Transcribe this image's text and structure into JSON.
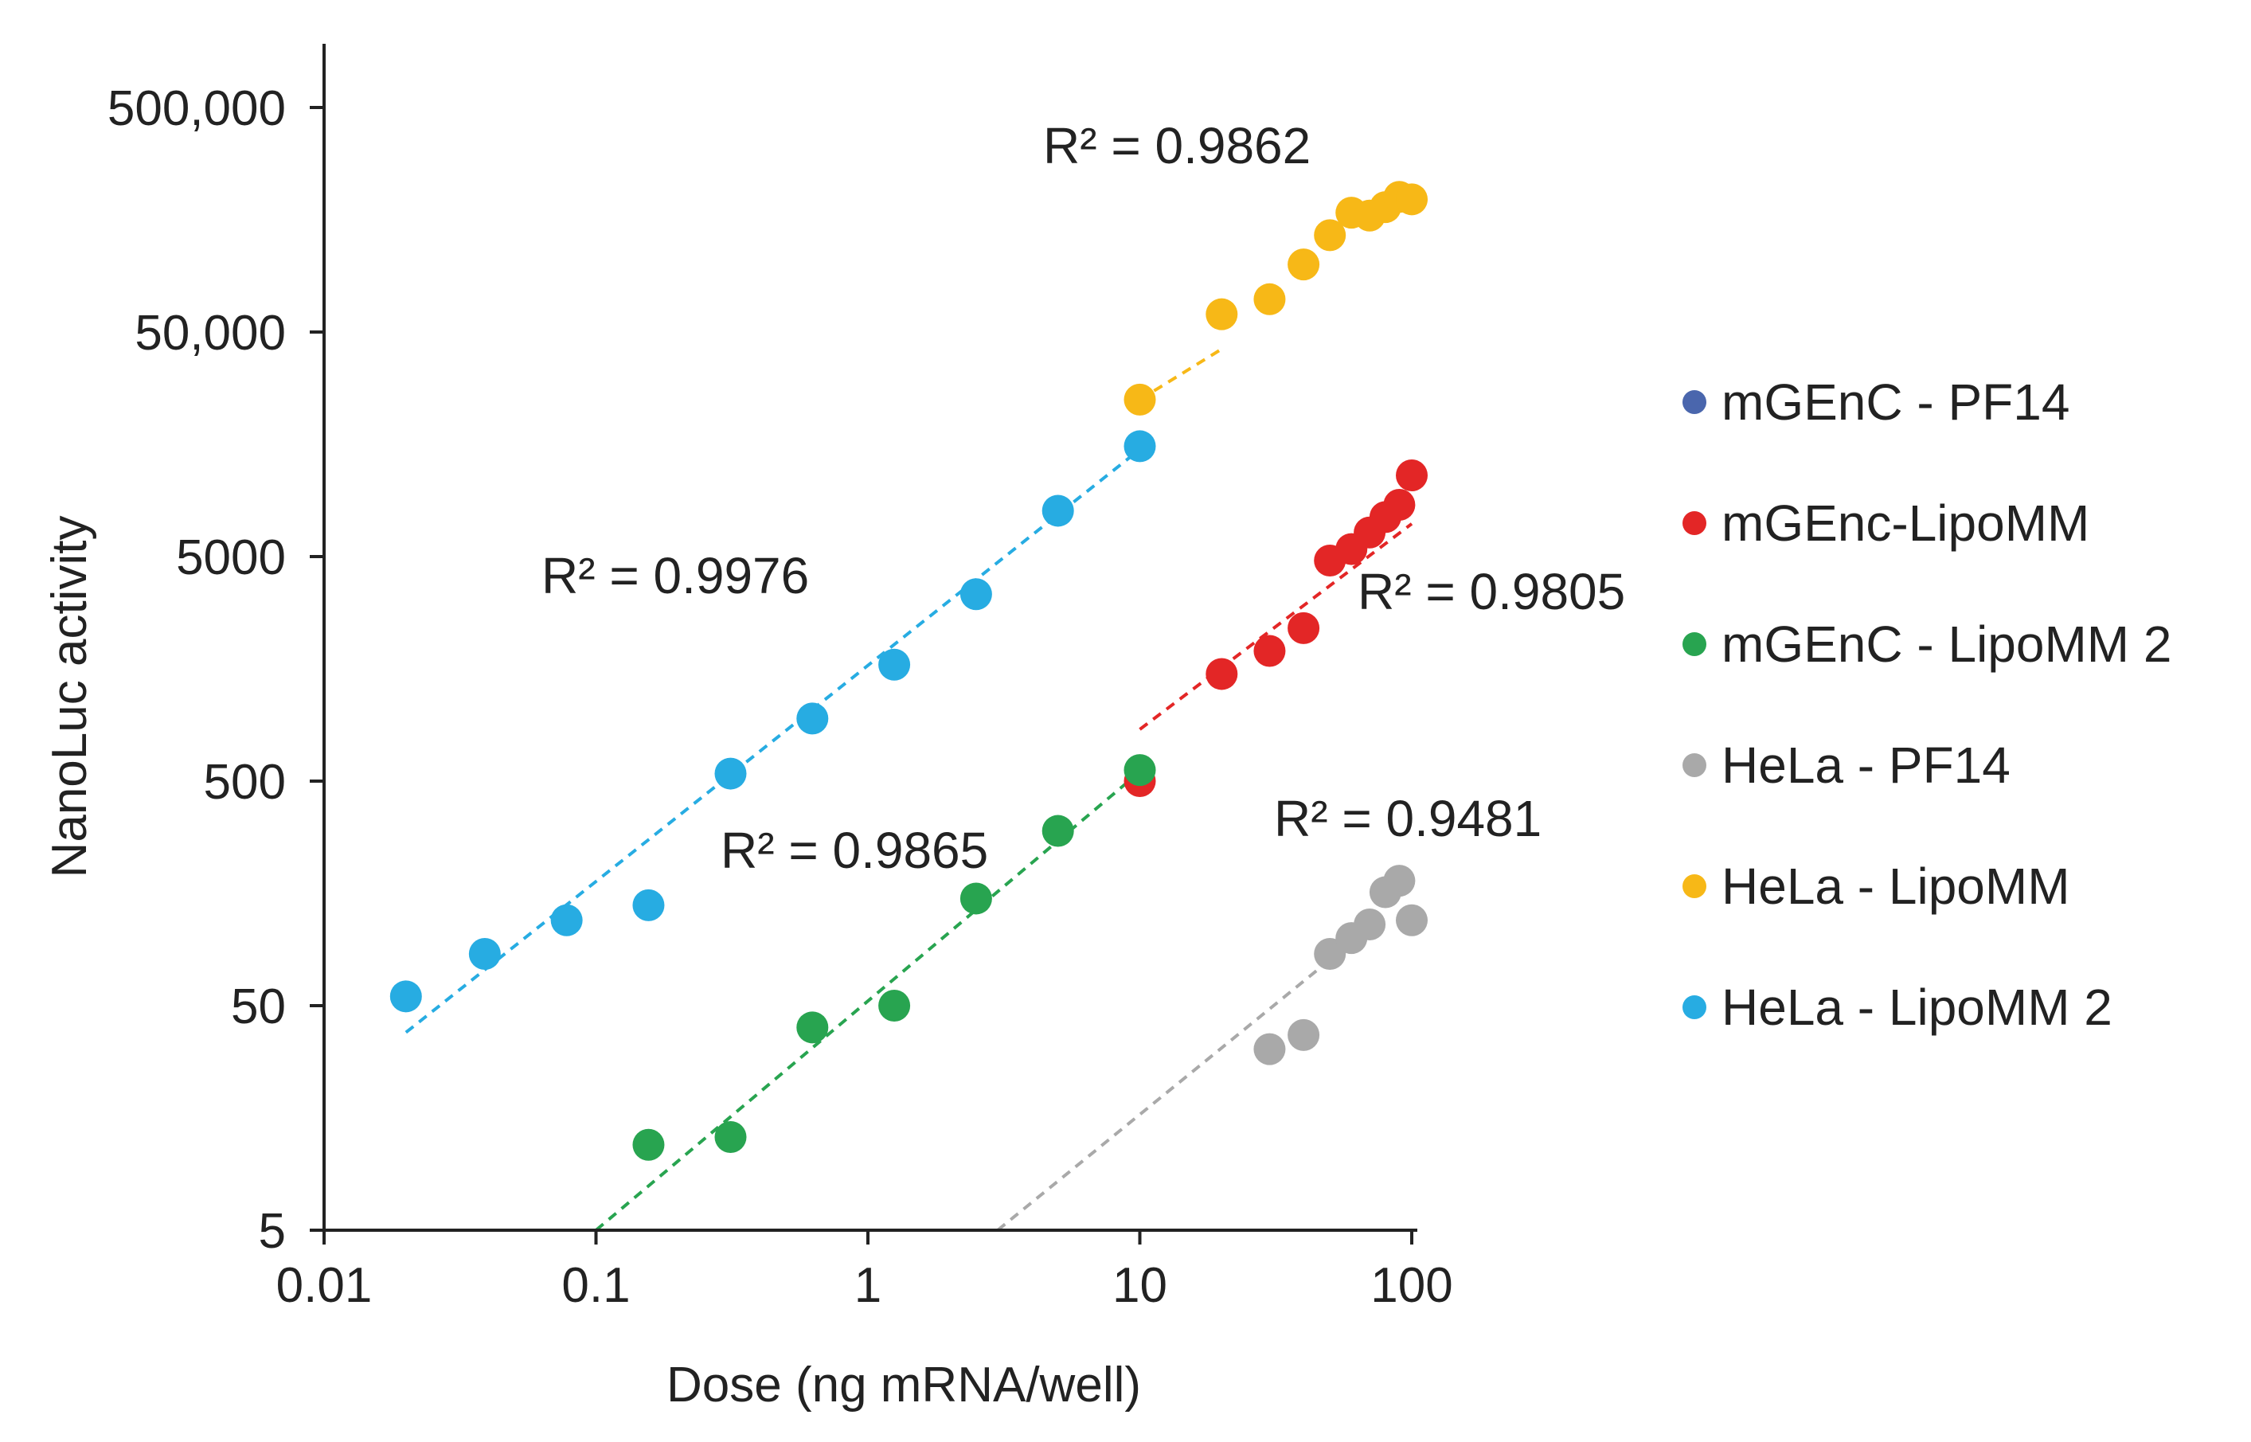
{
  "chart_data": {
    "type": "scatter",
    "title": "",
    "xlabel": "Dose (ng mRNA/well)",
    "ylabel": "NanoLuc activity",
    "x_scale": "log",
    "y_scale": "log",
    "xlim": [
      0.01,
      100
    ],
    "ylim": [
      5,
      1200000
    ],
    "x_ticks": [
      0.01,
      0.1,
      1,
      10,
      100
    ],
    "x_tick_labels": [
      "0.01",
      "0.1",
      "1",
      "10",
      "100"
    ],
    "y_ticks": [
      5,
      50,
      500,
      5000,
      50000,
      500000
    ],
    "y_tick_labels": [
      "5",
      "50",
      "500",
      "5000",
      "50,000",
      "500,000"
    ],
    "grid": false,
    "legend_position": "right",
    "series": [
      {
        "name": "mGEnC - PF14",
        "color": "#4a66ad",
        "x": [],
        "y": [],
        "trendline": null,
        "r2_label": null
      },
      {
        "name": "mGEnc-LipoMM",
        "color": "#e32626",
        "x": [
          10,
          20,
          30,
          40,
          50,
          60,
          70,
          80,
          90,
          100
        ],
        "y": [
          500,
          1500,
          1900,
          2400,
          4800,
          5400,
          6400,
          7500,
          8500,
          11500
        ],
        "trendline": {
          "x": [
            10,
            100
          ],
          "y": [
            850,
            7000
          ]
        },
        "r2_label": "R² = 0.9805"
      },
      {
        "name": "mGEnC - LipoMM 2",
        "color": "#28a450",
        "x": [
          0.156,
          0.3125,
          0.625,
          1.25,
          2.5,
          5,
          10
        ],
        "y": [
          12,
          13,
          40,
          50,
          150,
          300,
          560
        ],
        "trendline": {
          "x": [
            0.1,
            10
          ],
          "y": [
            5,
            550
          ]
        },
        "r2_label": "R² = 0.9865"
      },
      {
        "name": "HeLa - PF14",
        "color": "#a9a9a9",
        "x": [
          30,
          40,
          50,
          60,
          70,
          80,
          90,
          100
        ],
        "y": [
          32,
          37,
          85,
          100,
          115,
          160,
          180,
          120
        ],
        "trendline": {
          "x": [
            3,
            50
          ],
          "y": [
            5,
            80
          ]
        },
        "r2_label": "R² = 0.9481"
      },
      {
        "name": "HeLa - LipoMM",
        "color": "#f7b817",
        "x": [
          10,
          20,
          30,
          40,
          50,
          60,
          70,
          80,
          90,
          100
        ],
        "y": [
          25000,
          60000,
          70000,
          100000,
          135000,
          170000,
          165000,
          180000,
          200000,
          195000
        ],
        "trendline": {
          "x": [
            10,
            20
          ],
          "y": [
            25000,
            42000
          ]
        },
        "r2_label": "R² = 0.9862"
      },
      {
        "name": "HeLa - LipoMM 2",
        "color": "#27ace2",
        "x": [
          0.02,
          0.039,
          0.078,
          0.156,
          0.3125,
          0.625,
          1.25,
          2.5,
          5,
          10
        ],
        "y": [
          55,
          85,
          120,
          140,
          540,
          950,
          1650,
          3400,
          8000,
          15500
        ],
        "trendline": {
          "x": [
            0.02,
            10
          ],
          "y": [
            38,
            15000
          ]
        },
        "r2_label": "R² = 0.9976"
      }
    ]
  }
}
